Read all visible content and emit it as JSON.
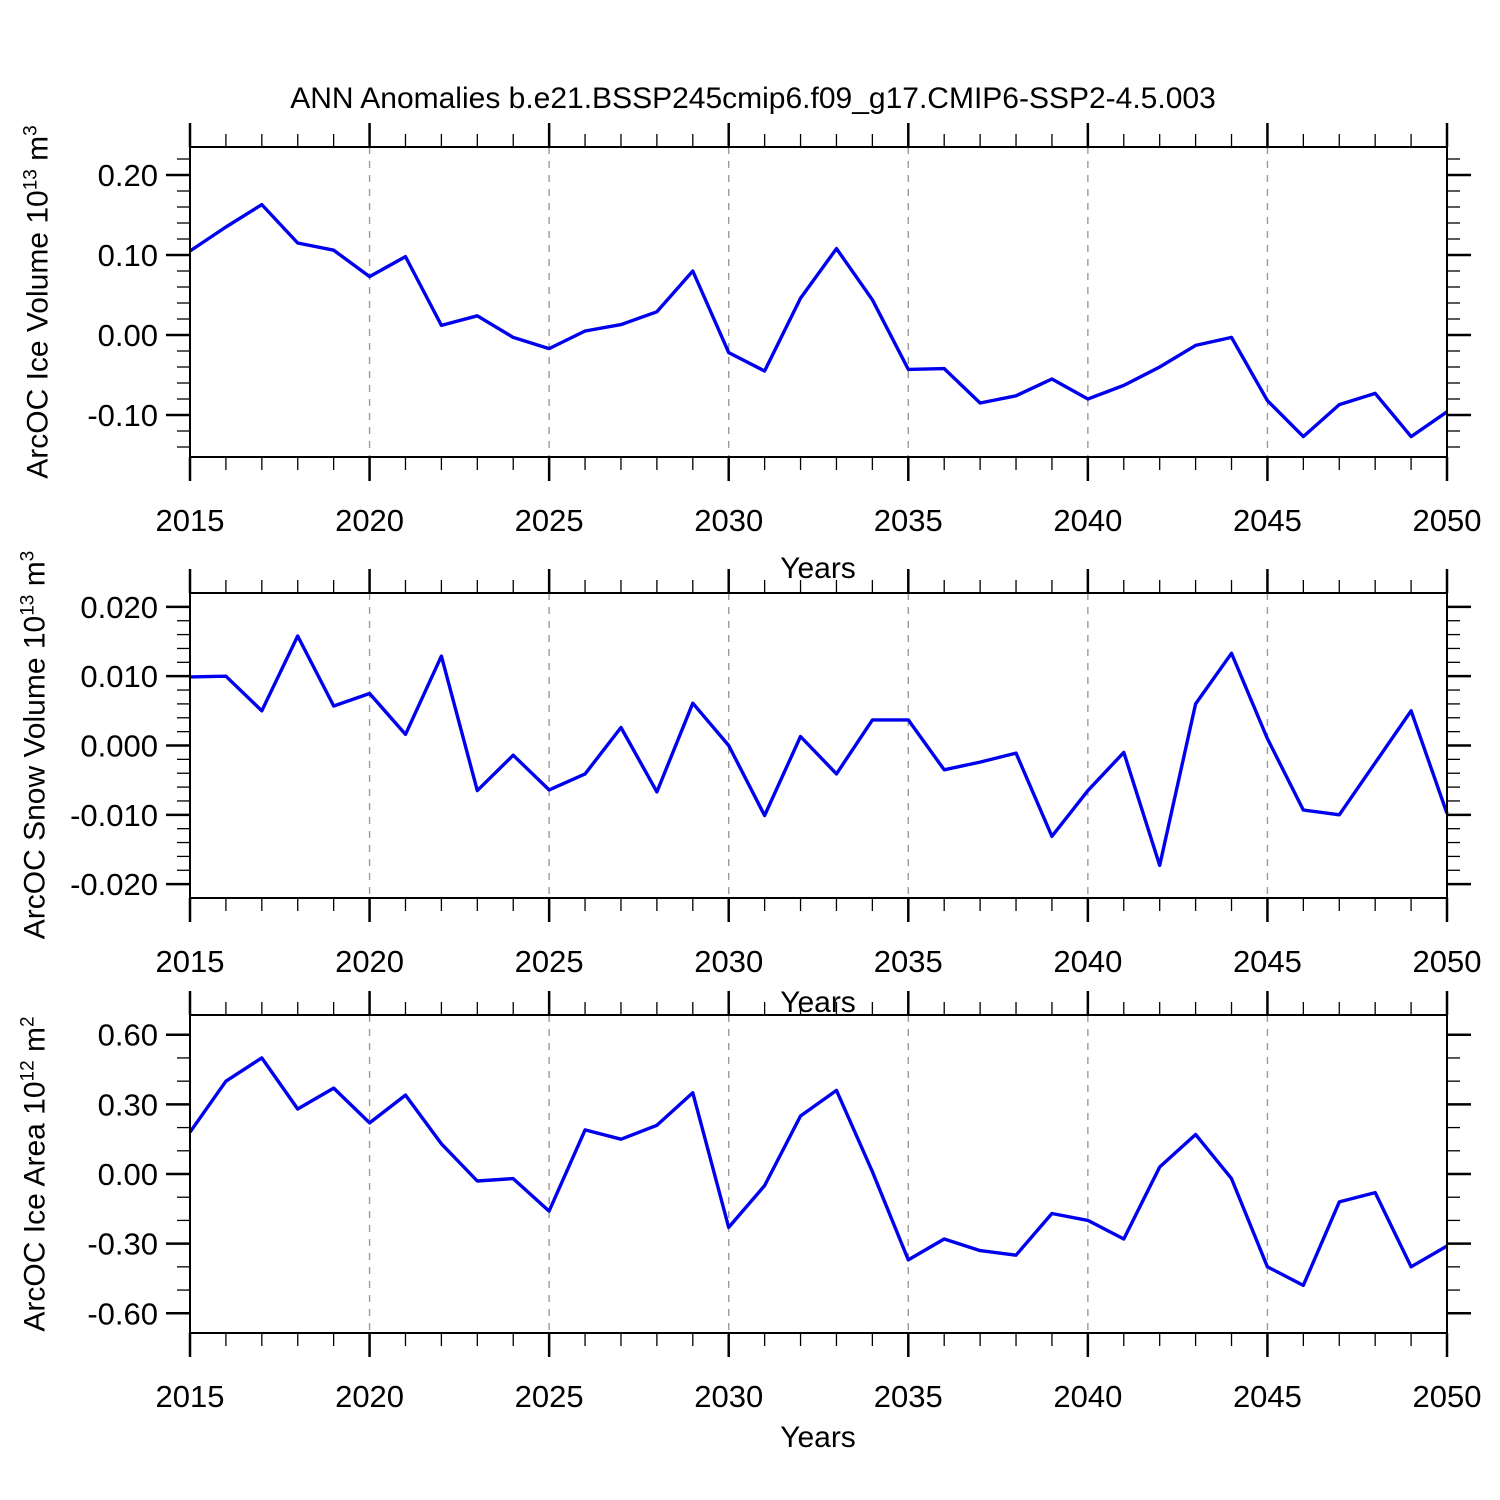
{
  "title": "ANN Anomalies b.e21.BSSP245cmip6.f09_g17.CMIP6-SSP2-4.5.003",
  "line_color": "#0000EE",
  "grid_color": "#9a9a9a",
  "chart_data": [
    {
      "type": "line",
      "xlabel": "Years",
      "ylabel": "ArcOC Ice Volume 10^13 m^3",
      "ylabel_parts": {
        "base": "ArcOC Ice Volume 10",
        "exp": "13",
        "unit": " m",
        "unit_exp": "3"
      },
      "x": [
        2015,
        2016,
        2017,
        2018,
        2019,
        2020,
        2021,
        2022,
        2023,
        2024,
        2025,
        2026,
        2027,
        2028,
        2029,
        2030,
        2031,
        2032,
        2033,
        2034,
        2035,
        2036,
        2037,
        2038,
        2039,
        2040,
        2041,
        2042,
        2043,
        2044,
        2045,
        2046,
        2047,
        2048,
        2049,
        2050
      ],
      "values": [
        0.105,
        0.135,
        0.163,
        0.115,
        0.106,
        0.073,
        0.098,
        0.012,
        0.024,
        -0.003,
        -0.017,
        0.005,
        0.013,
        0.029,
        0.08,
        -0.022,
        -0.045,
        0.046,
        0.108,
        0.044,
        -0.043,
        -0.042,
        -0.085,
        -0.076,
        -0.055,
        -0.08,
        -0.063,
        -0.04,
        -0.013,
        -0.003,
        -0.082,
        -0.127,
        -0.087,
        -0.073,
        -0.127,
        -0.096
      ],
      "xlim": [
        2015,
        2050
      ],
      "ylim": [
        -0.1525,
        0.235
      ],
      "xticks": [
        2015,
        2020,
        2025,
        2030,
        2035,
        2040,
        2045,
        2050
      ],
      "xminor_step": 1,
      "yticks": [
        0.2,
        0.1,
        0.0,
        -0.1
      ],
      "ytick_labels": [
        "0.20",
        "0.10",
        "0.00",
        "-0.10"
      ],
      "yminor_step": 0.02,
      "grid_at": [
        2020,
        2025,
        2030,
        2035,
        2040,
        2045
      ],
      "grid_style": "vertical-dashed",
      "legend": "none"
    },
    {
      "type": "line",
      "xlabel": "Years",
      "ylabel": "ArcOC Snow Volume 10^13 m^3",
      "ylabel_parts": {
        "base": "ArcOC Snow Volume 10",
        "exp": "13",
        "unit": " m",
        "unit_exp": "3"
      },
      "x": [
        2015,
        2016,
        2017,
        2018,
        2019,
        2020,
        2021,
        2022,
        2023,
        2024,
        2025,
        2026,
        2027,
        2028,
        2029,
        2030,
        2031,
        2032,
        2033,
        2034,
        2035,
        2036,
        2037,
        2038,
        2039,
        2040,
        2041,
        2042,
        2043,
        2044,
        2045,
        2046,
        2047,
        2048,
        2049,
        2050
      ],
      "values": [
        0.0099,
        0.01,
        0.005,
        0.0158,
        0.0057,
        0.0075,
        0.0016,
        0.0129,
        -0.0065,
        -0.0014,
        -0.0064,
        -0.0041,
        0.0026,
        -0.0067,
        0.0061,
        0.0,
        -0.0101,
        0.0013,
        -0.0041,
        0.0037,
        0.0037,
        -0.0035,
        -0.0024,
        -0.0011,
        -0.0131,
        -0.0065,
        -0.001,
        -0.0173,
        0.006,
        0.0133,
        0.001,
        -0.0093,
        -0.01,
        -0.0025,
        0.005,
        -0.0098
      ],
      "xlim": [
        2015,
        2050
      ],
      "ylim": [
        -0.022,
        0.022
      ],
      "xticks": [
        2015,
        2020,
        2025,
        2030,
        2035,
        2040,
        2045,
        2050
      ],
      "xminor_step": 1,
      "yticks": [
        0.02,
        0.01,
        0.0,
        -0.01,
        -0.02
      ],
      "ytick_labels": [
        "0.020",
        "0.010",
        "0.000",
        "-0.010",
        "-0.020"
      ],
      "yminor_step": 0.002,
      "grid_at": [
        2020,
        2025,
        2030,
        2035,
        2040,
        2045
      ],
      "grid_style": "vertical-dashed",
      "legend": "none"
    },
    {
      "type": "line",
      "xlabel": "Years",
      "ylabel": "ArcOC Ice Area 10^12 m^2",
      "ylabel_parts": {
        "base": "ArcOC Ice Area 10",
        "exp": "12",
        "unit": " m",
        "unit_exp": "2"
      },
      "x": [
        2015,
        2016,
        2017,
        2018,
        2019,
        2020,
        2021,
        2022,
        2023,
        2024,
        2025,
        2026,
        2027,
        2028,
        2029,
        2030,
        2031,
        2032,
        2033,
        2034,
        2035,
        2036,
        2037,
        2038,
        2039,
        2040,
        2041,
        2042,
        2043,
        2044,
        2045,
        2046,
        2047,
        2048,
        2049,
        2050
      ],
      "values": [
        0.18,
        0.4,
        0.5,
        0.28,
        0.37,
        0.22,
        0.34,
        0.13,
        -0.03,
        -0.02,
        -0.16,
        0.19,
        0.15,
        0.21,
        0.35,
        -0.23,
        -0.05,
        0.25,
        0.36,
        0.01,
        -0.37,
        -0.28,
        -0.33,
        -0.35,
        -0.17,
        -0.2,
        -0.28,
        0.03,
        0.17,
        -0.02,
        -0.4,
        -0.48,
        -0.12,
        -0.08,
        -0.4,
        -0.31
      ],
      "xlim": [
        2015,
        2050
      ],
      "ylim": [
        -0.685,
        0.685
      ],
      "xticks": [
        2015,
        2020,
        2025,
        2030,
        2035,
        2040,
        2045,
        2050
      ],
      "xminor_step": 1,
      "yticks": [
        0.6,
        0.3,
        0.0,
        -0.3,
        -0.6
      ],
      "ytick_labels": [
        "0.60",
        "0.30",
        "0.00",
        "-0.30",
        "-0.60"
      ],
      "yminor_step": 0.1,
      "grid_at": [
        2020,
        2025,
        2030,
        2035,
        2040,
        2045
      ],
      "grid_style": "vertical-dashed",
      "legend": "none"
    }
  ]
}
